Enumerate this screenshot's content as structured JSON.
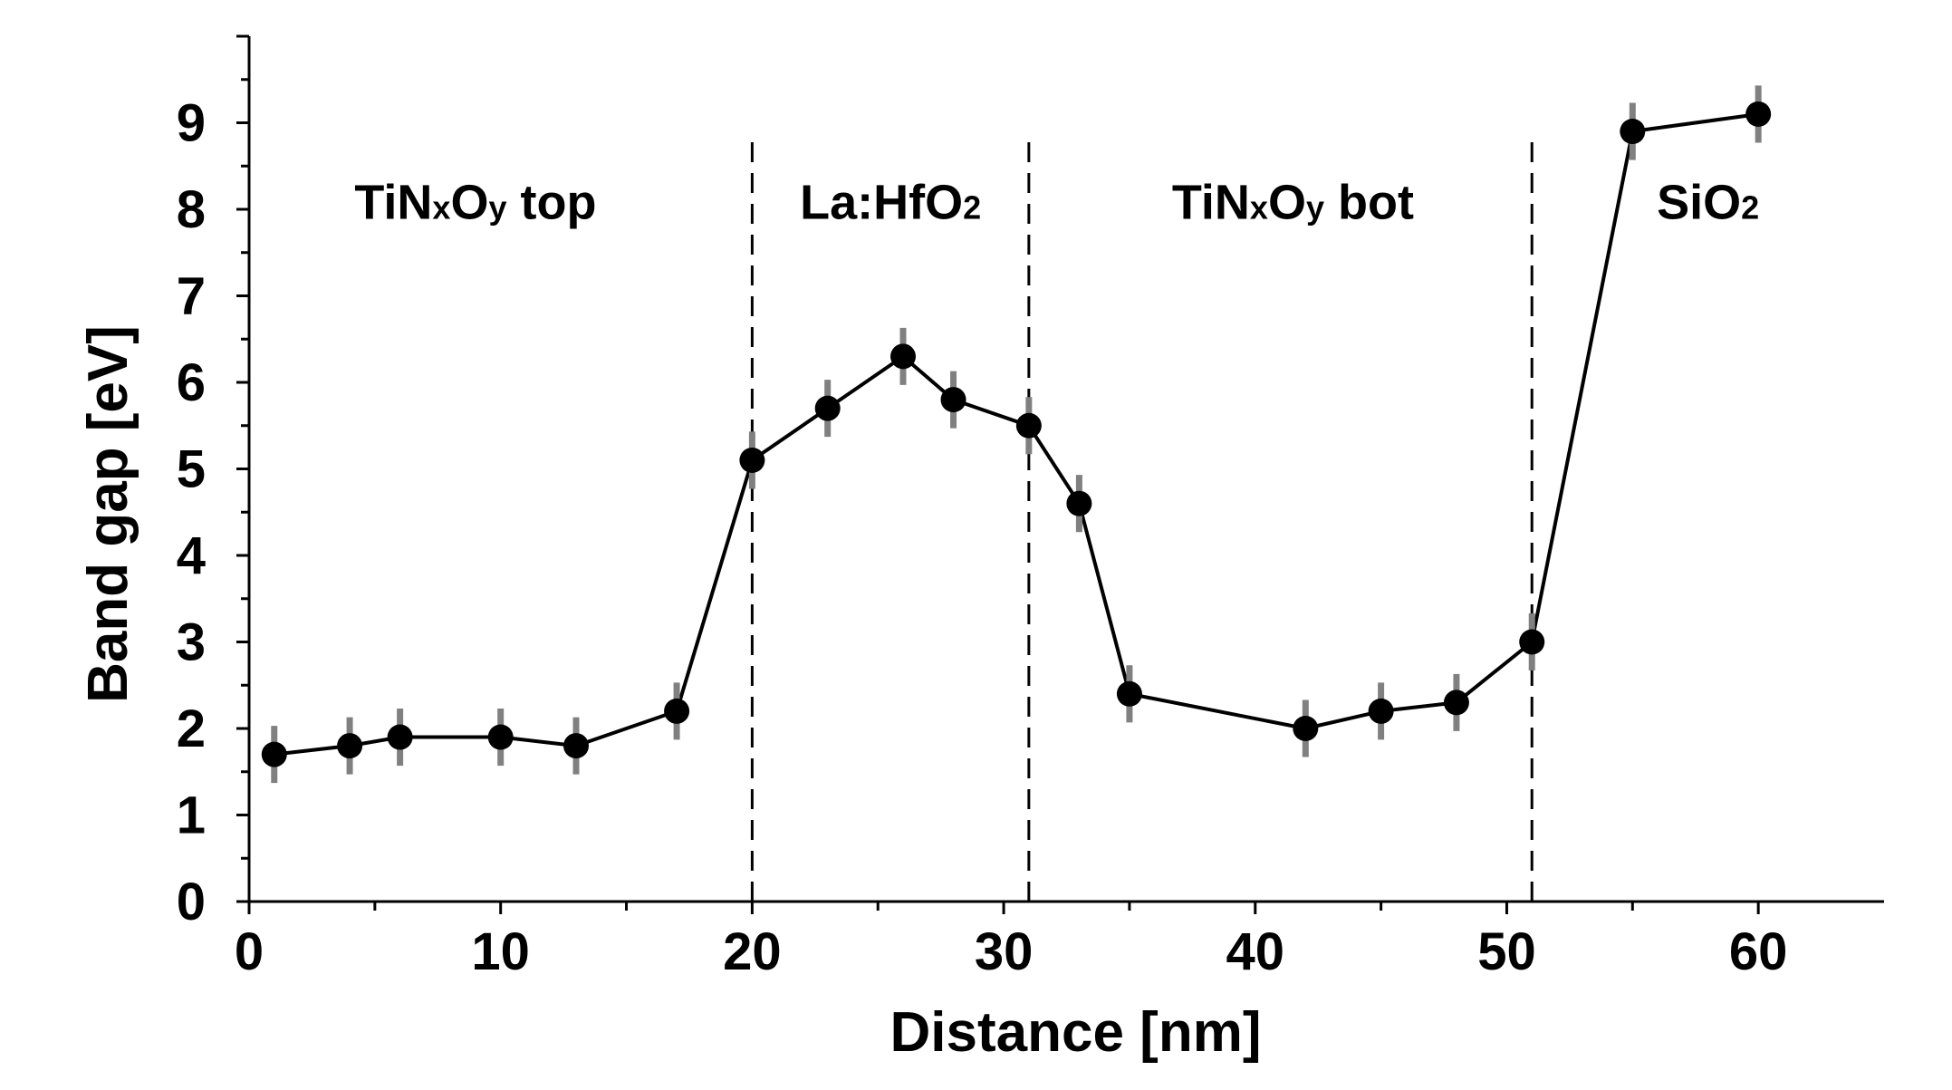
{
  "chart_data": {
    "type": "line",
    "xlabel": "Distance [nm]",
    "ylabel": "Band gap [eV]",
    "xlim": [
      0,
      65
    ],
    "ylim": [
      0,
      10
    ],
    "x_ticks": [
      0,
      10,
      20,
      30,
      40,
      50,
      60
    ],
    "y_ticks": [
      0,
      1,
      2,
      3,
      4,
      5,
      6,
      7,
      8,
      9
    ],
    "grid": false,
    "marker": "circle",
    "errorbar_color": "#808080",
    "line_color": "#000000",
    "series": [
      {
        "x": [
          1,
          4,
          6,
          10,
          13,
          17,
          20,
          23,
          26,
          28,
          31,
          33,
          35,
          42,
          45,
          48,
          51,
          55,
          60
        ],
        "y": [
          1.7,
          1.8,
          1.9,
          1.9,
          1.8,
          2.2,
          5.1,
          5.7,
          6.3,
          5.8,
          5.5,
          4.6,
          2.4,
          2.0,
          2.2,
          2.3,
          3.0,
          8.9,
          9.1
        ],
        "error": [
          0.33,
          0.33,
          0.33,
          0.33,
          0.33,
          0.33,
          0.33,
          0.33,
          0.33,
          0.33,
          0.33,
          0.33,
          0.33,
          0.33,
          0.33,
          0.33,
          0.33,
          0.33,
          0.33
        ]
      }
    ],
    "boundaries": [
      20,
      31,
      51
    ],
    "regions": [
      {
        "main": "TiN",
        "sub1": "x",
        "mid": "O",
        "sub2": "y",
        "tail": " top",
        "x_center": 9
      },
      {
        "main": "La:HfO",
        "sub1": "2",
        "mid": "",
        "sub2": "",
        "tail": "",
        "x_center": 25.5
      },
      {
        "main": "TiN",
        "sub1": "x",
        "mid": "O",
        "sub2": "y",
        "tail": " bot",
        "x_center": 41.5
      },
      {
        "main": "SiO",
        "sub1": "2",
        "mid": "",
        "sub2": "",
        "tail": "",
        "x_center": 58
      }
    ],
    "region_label_y": 8.1
  }
}
